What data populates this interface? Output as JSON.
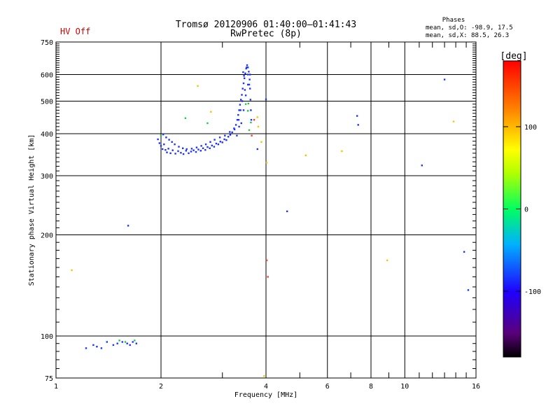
{
  "header": {
    "title": "Tromsø 20120906 01:40:00–01:41:43",
    "subtitle": "RwPretec (8p)",
    "status": "HV Off"
  },
  "stats": {
    "heading": "Phases",
    "line1": "mean, sd,O: -98.9, 17.5",
    "line2": "mean, sd,X:  88.5, 26.3"
  },
  "colors": {
    "status": "#d00000",
    "grid": "#000000",
    "background": "#ffffff"
  },
  "chart_data": {
    "type": "scatter",
    "xlabel": "Frequency [MHz]",
    "ylabel": "Stationary phase Virtual Height [km]",
    "x_scale": "log",
    "y_scale": "log",
    "xlim": [
      1,
      16
    ],
    "ylim": [
      75,
      750
    ],
    "x_ticks": [
      1,
      2,
      4,
      6,
      8,
      10,
      16
    ],
    "x_tick_labels": [
      "1",
      "2",
      "4",
      "6",
      "8",
      "10",
      "16"
    ],
    "x_minor_ticks": [
      3,
      5,
      7,
      9,
      11,
      12,
      13,
      14,
      15
    ],
    "y_ticks": [
      75,
      100,
      200,
      300,
      400,
      500,
      600,
      750
    ],
    "y_tick_labels": [
      "75",
      "100",
      "200",
      "300",
      "400",
      "500",
      "600",
      "750"
    ],
    "grid": true,
    "colorbar": {
      "label": "[deg]",
      "range": [
        -180,
        180
      ],
      "ticks": [
        100,
        0,
        -100
      ],
      "tick_labels": [
        "100",
        "0",
        "-100"
      ]
    },
    "series": [
      {
        "points": [
          [
            1.28,
            94
          ],
          [
            1.31,
            93
          ],
          [
            1.35,
            92
          ],
          [
            1.4,
            96
          ],
          [
            1.46,
            94
          ],
          [
            1.5,
            95
          ],
          [
            1.55,
            96
          ],
          [
            1.6,
            95
          ],
          [
            1.63,
            94
          ],
          [
            1.66,
            96
          ],
          [
            1.7,
            95
          ],
          [
            1.22,
            92
          ],
          [
            1.96,
            385
          ],
          [
            1.98,
            375
          ],
          [
            2.0,
            368
          ],
          [
            2.02,
            360
          ],
          [
            2.04,
            372
          ],
          [
            2.06,
            358
          ],
          [
            2.08,
            352
          ],
          [
            2.1,
            361
          ],
          [
            2.13,
            350
          ],
          [
            2.16,
            357
          ],
          [
            2.2,
            349
          ],
          [
            2.24,
            355
          ],
          [
            2.28,
            351
          ],
          [
            2.32,
            348
          ],
          [
            2.36,
            356
          ],
          [
            2.4,
            350
          ],
          [
            2.44,
            354
          ],
          [
            2.48,
            357
          ],
          [
            2.52,
            353
          ],
          [
            2.56,
            359
          ],
          [
            2.6,
            356
          ],
          [
            2.64,
            362
          ],
          [
            2.68,
            358
          ],
          [
            2.72,
            365
          ],
          [
            2.76,
            362
          ],
          [
            2.8,
            369
          ],
          [
            2.84,
            366
          ],
          [
            2.88,
            374
          ],
          [
            2.92,
            372
          ],
          [
            2.96,
            379
          ],
          [
            3.0,
            377
          ],
          [
            3.04,
            385
          ],
          [
            3.08,
            383
          ],
          [
            3.12,
            392
          ],
          [
            3.16,
            397
          ],
          [
            3.2,
            404
          ],
          [
            3.24,
            415
          ],
          [
            3.28,
            425
          ],
          [
            3.31,
            440
          ],
          [
            3.33,
            455
          ],
          [
            3.35,
            470
          ],
          [
            3.37,
            488
          ],
          [
            3.39,
            505
          ],
          [
            3.41,
            522
          ],
          [
            3.43,
            545
          ],
          [
            3.45,
            565
          ],
          [
            3.47,
            585
          ],
          [
            3.49,
            605
          ],
          [
            3.51,
            625
          ],
          [
            3.53,
            640
          ],
          [
            3.55,
            630
          ],
          [
            3.57,
            612
          ],
          [
            3.59,
            580
          ],
          [
            3.6,
            545
          ],
          [
            3.61,
            505
          ],
          [
            3.62,
            470
          ],
          [
            3.63,
            440
          ],
          [
            3.6,
            600
          ],
          [
            3.55,
            560
          ],
          [
            3.5,
            520
          ],
          [
            3.45,
            470
          ],
          [
            3.4,
            430
          ],
          [
            3.35,
            420
          ],
          [
            3.3,
            395
          ],
          [
            2.03,
            398
          ],
          [
            2.07,
            390
          ],
          [
            2.11,
            384
          ],
          [
            2.15,
            378
          ],
          [
            2.19,
            372
          ],
          [
            2.25,
            366
          ],
          [
            2.31,
            362
          ],
          [
            2.37,
            360
          ],
          [
            2.45,
            361
          ],
          [
            2.53,
            364
          ],
          [
            2.61,
            368
          ],
          [
            2.69,
            372
          ],
          [
            2.77,
            378
          ],
          [
            2.85,
            384
          ],
          [
            2.95,
            390
          ],
          [
            3.05,
            395
          ],
          [
            3.15,
            405
          ],
          [
            3.25,
            412
          ],
          [
            3.52,
            630
          ],
          [
            3.55,
            600
          ],
          [
            3.58,
            560
          ],
          [
            3.48,
            540
          ],
          [
            3.42,
            500
          ],
          [
            3.38,
            470
          ],
          [
            3.34,
            440
          ],
          [
            3.44,
            610
          ],
          [
            3.46,
            595
          ],
          [
            3.78,
            360
          ],
          [
            4.6,
            235
          ],
          [
            4.0,
            506
          ],
          [
            1.61,
            213
          ],
          [
            7.3,
            452
          ],
          [
            7.35,
            425
          ],
          [
            11.2,
            322
          ],
          [
            13.0,
            580
          ],
          [
            14.8,
            178
          ],
          [
            15.2,
            137
          ]
        ]
      },
      {
        "points": [
          [
            1.68,
            97
          ],
          [
            1.58,
            96
          ],
          [
            1.52,
            97
          ],
          [
            2.35,
            445
          ],
          [
            2.0,
            395
          ],
          [
            3.55,
            468
          ],
          [
            3.62,
            432
          ],
          [
            3.58,
            410
          ],
          [
            2.72,
            430
          ],
          [
            3.5,
            490
          ],
          [
            3.56,
            492
          ]
        ]
      },
      {
        "points": [
          [
            1.11,
            157
          ],
          [
            2.55,
            555
          ],
          [
            2.78,
            465
          ],
          [
            3.78,
            448
          ],
          [
            3.8,
            420
          ],
          [
            4.02,
            328
          ],
          [
            5.2,
            345
          ],
          [
            6.6,
            355
          ],
          [
            8.9,
            168
          ],
          [
            13.8,
            435
          ],
          [
            3.95,
            76
          ],
          [
            3.88,
            378
          ]
        ]
      },
      {
        "points": [
          [
            4.05,
            150
          ],
          [
            4.02,
            168
          ],
          [
            3.7,
            440
          ],
          [
            3.64,
            395
          ]
        ]
      }
    ]
  }
}
